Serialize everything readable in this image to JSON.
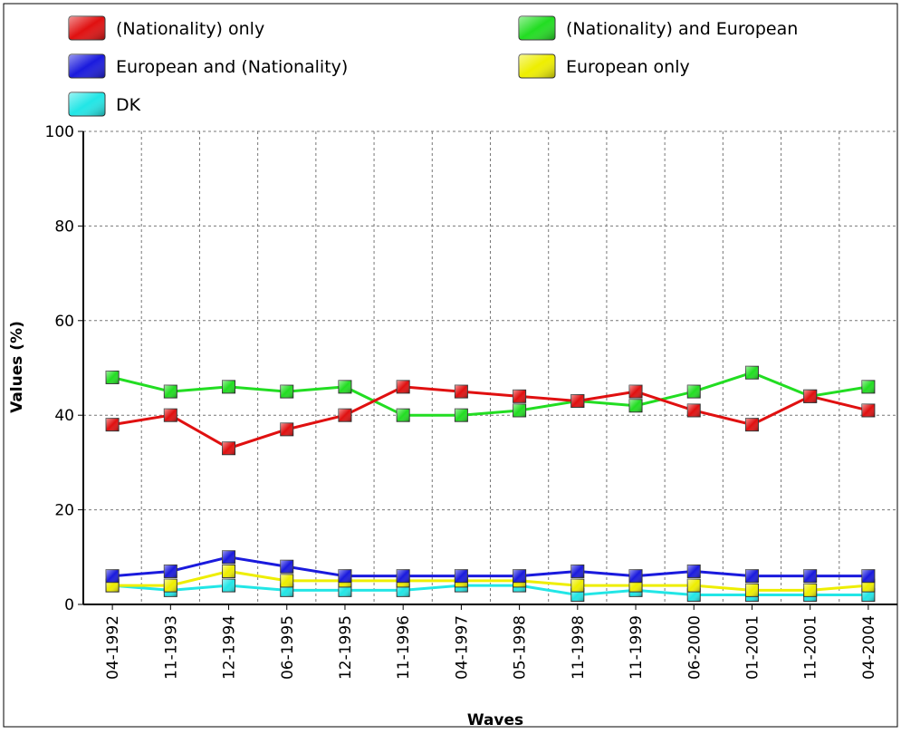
{
  "chart_data": {
    "type": "line",
    "xlabel": "Waves",
    "ylabel": "Values (%)",
    "categories": [
      "04-1992",
      "11-1993",
      "12-1994",
      "06-1995",
      "12-1995",
      "11-1996",
      "04-1997",
      "05-1998",
      "11-1998",
      "11-1999",
      "06-2000",
      "01-2001",
      "11-2001",
      "04-2004"
    ],
    "ylim": [
      0,
      100
    ],
    "yticks": [
      "0",
      "20",
      "40",
      "60",
      "80",
      "100"
    ],
    "grid": true,
    "legend_position": "top",
    "series": [
      {
        "name": "(Nationality) only",
        "color": "#e01010",
        "values": [
          38,
          40,
          33,
          37,
          40,
          46,
          45,
          44,
          43,
          45,
          41,
          38,
          44,
          41
        ]
      },
      {
        "name": "(Nationality) and European",
        "color": "#22dd22",
        "values": [
          48,
          45,
          46,
          45,
          46,
          40,
          40,
          41,
          43,
          42,
          45,
          49,
          44,
          46
        ]
      },
      {
        "name": "European and (Nationality)",
        "color": "#1a1add",
        "values": [
          6,
          7,
          10,
          8,
          6,
          6,
          6,
          6,
          7,
          6,
          7,
          6,
          6,
          6
        ]
      },
      {
        "name": "European only",
        "color": "#eeee00",
        "values": [
          4,
          4,
          7,
          5,
          5,
          5,
          5,
          5,
          4,
          4,
          4,
          3,
          3,
          4
        ]
      },
      {
        "name": "DK",
        "color": "#22e6e6",
        "values": [
          4,
          3,
          4,
          3,
          3,
          3,
          4,
          4,
          2,
          3,
          2,
          2,
          2,
          2
        ]
      }
    ]
  }
}
